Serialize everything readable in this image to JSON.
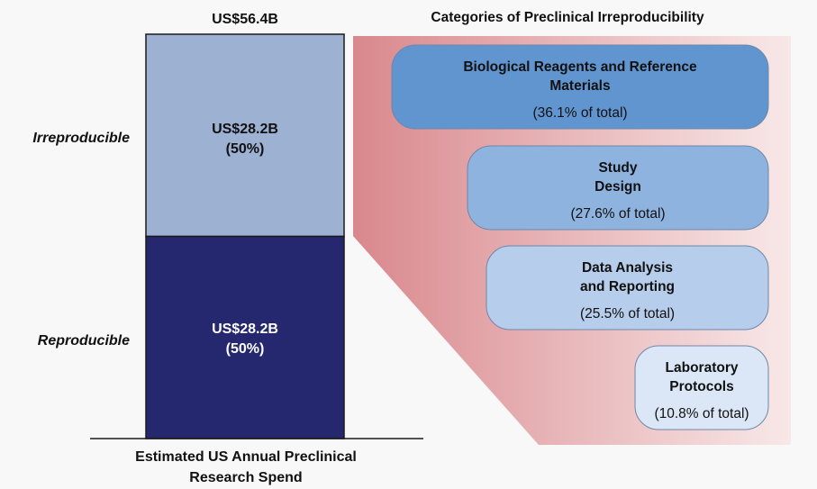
{
  "chart_data": {
    "type": "bar",
    "total_label": "US$56.4B",
    "xlabel": [
      "Estimated US Annual Preclinical",
      "Research Spend"
    ],
    "bar_segments": [
      {
        "name": "Reproducible",
        "value": 28.2,
        "value_label": "US$28.2B",
        "pct_label": "(50%)",
        "color": "#25286e"
      },
      {
        "name": "Irreproducible",
        "value": 28.2,
        "value_label": "US$28.2B",
        "pct_label": "(50%)",
        "color": "#9db1d2"
      }
    ],
    "categories_title": "Categories of Preclinical Irreproducibility",
    "categories": [
      {
        "lines": [
          "Biological Reagents and Reference",
          "Materials"
        ],
        "value": 36.1,
        "pct_label": "(36.1% of total)",
        "color": "#6195d0"
      },
      {
        "lines": [
          "Study",
          "Design"
        ],
        "value": 27.6,
        "pct_label": "(27.6% of total)",
        "color": "#8eb3df"
      },
      {
        "lines": [
          "Data Analysis",
          "and Reporting"
        ],
        "value": 25.5,
        "pct_label": "(25.5% of total)",
        "color": "#b6cdeb"
      },
      {
        "lines": [
          "Laboratory",
          "Protocols"
        ],
        "value": 10.8,
        "pct_label": "(10.8% of total)",
        "color": "#dbe7f6"
      }
    ],
    "colors": {
      "funnel_dark": "#d9888d",
      "funnel_light": "#f8e8e8",
      "bar_outline": "#1a1a1a"
    }
  }
}
